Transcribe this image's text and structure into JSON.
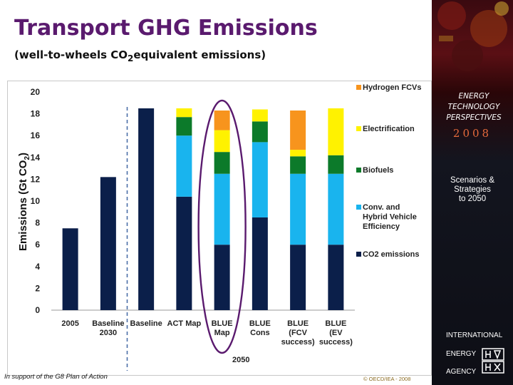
{
  "slide": {
    "title": "Transport GHG Emissions",
    "subtitle_before": "(well-to-wheels CO",
    "subtitle_sub": "2",
    "subtitle_after": "equivalent emissions)",
    "footer_left": "In support of the G8 Plan of Action",
    "footer_right": "© OECD/IEA - 2008"
  },
  "sidebar": {
    "brand_line1": "ENERGY",
    "brand_line2": "TECHNOLOGY",
    "brand_line3": "PERSPECTIVES",
    "brand_year": "2008",
    "tagline_line1": "Scenarios &",
    "tagline_line2": "Strategies",
    "tagline_line3": "to 2050",
    "org_line1": "INTERNATIONAL",
    "org_line2": "ENERGY",
    "org_line3": "AGENCY"
  },
  "chart_data": {
    "type": "bar",
    "stacked": true,
    "ylabel_main": "Emissions (Gt CO",
    "ylabel_sub": "2",
    "ylabel_close": ")",
    "ylim": [
      0,
      20
    ],
    "yticks": [
      "0",
      "2",
      "4",
      "6",
      "8",
      "10",
      "12",
      "14",
      "16",
      "18",
      "20"
    ],
    "categories": [
      [
        "2005"
      ],
      [
        "Baseline",
        "2030"
      ],
      [
        "Baseline"
      ],
      [
        "ACT Map"
      ],
      [
        "BLUE",
        "Map"
      ],
      [
        "BLUE",
        "Cons"
      ],
      [
        "BLUE",
        "(FCV",
        "success)"
      ],
      [
        "BLUE",
        "(EV",
        "success)"
      ]
    ],
    "group_label": "2050",
    "highlight_category": 4,
    "series": [
      {
        "name": "CO2 emissions",
        "color": "#0b1f4a",
        "values": [
          7.5,
          12.2,
          18.5,
          10.4,
          6.0,
          8.5,
          6.0,
          6.0
        ]
      },
      {
        "name": "Conv. and Hybrid Vehicle Efficiency",
        "color": "#19b4ee",
        "values": [
          0,
          0,
          0,
          5.6,
          6.5,
          6.9,
          6.5,
          6.5
        ]
      },
      {
        "name": "Biofuels",
        "color": "#0c7a2a",
        "values": [
          0,
          0,
          0,
          1.7,
          2.0,
          1.9,
          1.6,
          1.7
        ]
      },
      {
        "name": "Electrification",
        "color": "#fff200",
        "values": [
          0,
          0,
          0,
          0.8,
          2.0,
          1.1,
          0.6,
          4.3
        ]
      },
      {
        "name": "Hydrogen FCVs",
        "color": "#f7941d",
        "values": [
          0,
          0,
          0,
          0,
          1.8,
          0,
          3.6,
          0
        ]
      }
    ],
    "legend": [
      {
        "series": 4,
        "lines": [
          "Hydrogen FCVs"
        ]
      },
      {
        "series": 3,
        "lines": [
          "Electrification"
        ]
      },
      {
        "series": 2,
        "lines": [
          "Biofuels"
        ]
      },
      {
        "series": 1,
        "lines": [
          "Conv. and",
          "Hybrid Vehicle",
          "Efficiency"
        ]
      },
      {
        "series": 0,
        "lines": [
          "CO2 emissions"
        ]
      }
    ]
  }
}
